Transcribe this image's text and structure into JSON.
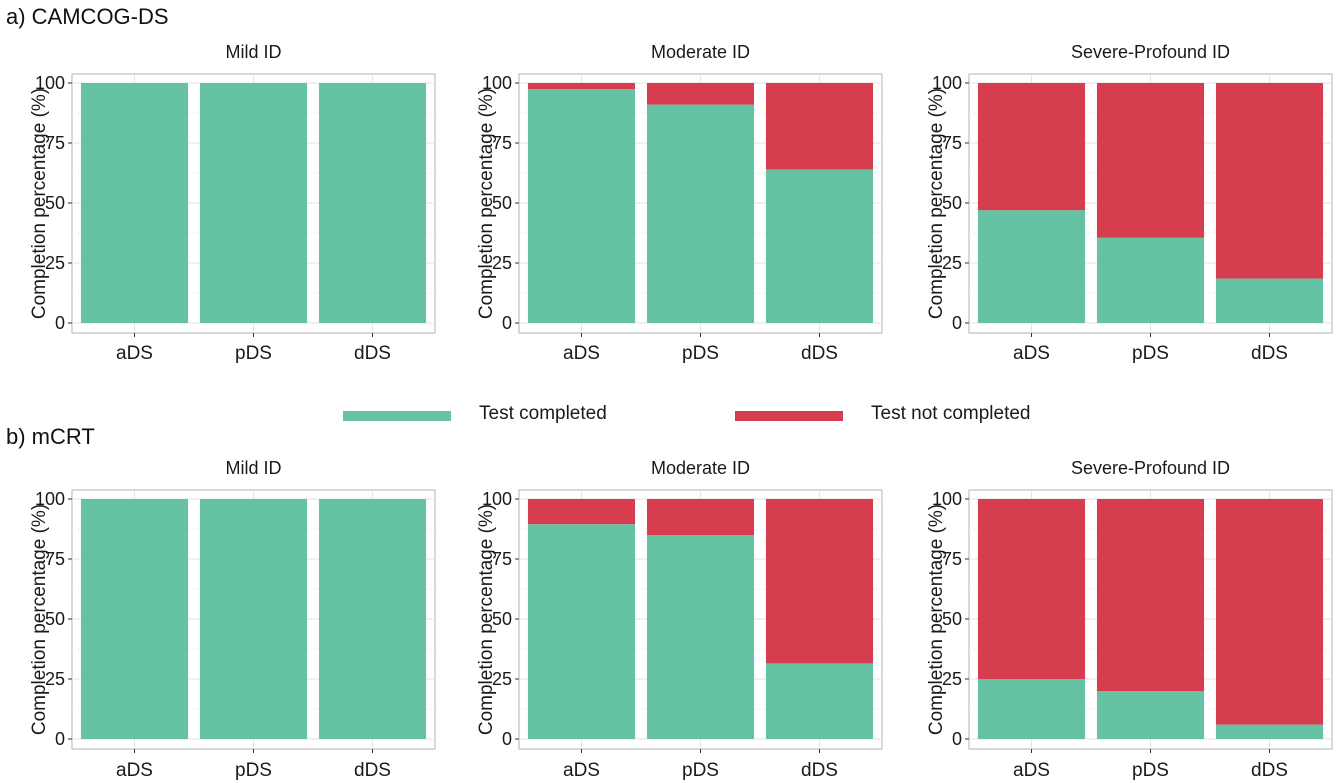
{
  "sections": {
    "a": {
      "label": "a) CAMCOG-DS"
    },
    "b": {
      "label": "b) mCRT"
    }
  },
  "legend": [
    {
      "label": "Test completed",
      "color": "#66c2a5"
    },
    {
      "label": "Test not completed",
      "color": "#d63e4f"
    }
  ],
  "chart_data": [
    {
      "type": "bar",
      "stacked": true,
      "panel_of": "a) CAMCOG-DS",
      "title": "Mild ID",
      "categories": [
        "aDS",
        "pDS",
        "dDS"
      ],
      "series": [
        {
          "name": "Test completed",
          "values": [
            100,
            100,
            100
          ]
        },
        {
          "name": "Test not completed",
          "values": [
            0,
            0,
            0
          ]
        }
      ],
      "ylabel": "Completion percentage (%)",
      "ylim": [
        0,
        100
      ],
      "yticks": [
        0,
        25,
        50,
        75,
        100
      ],
      "grid": true
    },
    {
      "type": "bar",
      "stacked": true,
      "panel_of": "a) CAMCOG-DS",
      "title": "Moderate ID",
      "categories": [
        "aDS",
        "pDS",
        "dDS"
      ],
      "series": [
        {
          "name": "Test completed",
          "values": [
            97.5,
            91,
            64
          ]
        },
        {
          "name": "Test not completed",
          "values": [
            2.5,
            9,
            36
          ]
        }
      ],
      "ylabel": "Completion percentage (%)",
      "ylim": [
        0,
        100
      ],
      "yticks": [
        0,
        25,
        50,
        75,
        100
      ],
      "grid": true
    },
    {
      "type": "bar",
      "stacked": true,
      "panel_of": "a) CAMCOG-DS",
      "title": "Severe-Profound ID",
      "categories": [
        "aDS",
        "pDS",
        "dDS"
      ],
      "series": [
        {
          "name": "Test completed",
          "values": [
            47,
            35.5,
            18.5
          ]
        },
        {
          "name": "Test not completed",
          "values": [
            53,
            64.5,
            81.5
          ]
        }
      ],
      "ylabel": "Completion percentage (%)",
      "ylim": [
        0,
        100
      ],
      "yticks": [
        0,
        25,
        50,
        75,
        100
      ],
      "grid": true
    },
    {
      "type": "bar",
      "stacked": true,
      "panel_of": "b) mCRT",
      "title": "Mild ID",
      "categories": [
        "aDS",
        "pDS",
        "dDS"
      ],
      "series": [
        {
          "name": "Test completed",
          "values": [
            100,
            100,
            100
          ]
        },
        {
          "name": "Test not completed",
          "values": [
            0,
            0,
            0
          ]
        }
      ],
      "ylabel": "Completion percentage (%)",
      "ylim": [
        0,
        100
      ],
      "yticks": [
        0,
        25,
        50,
        75,
        100
      ],
      "grid": true
    },
    {
      "type": "bar",
      "stacked": true,
      "panel_of": "b) mCRT",
      "title": "Moderate ID",
      "categories": [
        "aDS",
        "pDS",
        "dDS"
      ],
      "series": [
        {
          "name": "Test completed",
          "values": [
            89.5,
            85,
            31.5
          ]
        },
        {
          "name": "Test not completed",
          "values": [
            10.5,
            15,
            68.5
          ]
        }
      ],
      "ylabel": "Completion percentage (%)",
      "ylim": [
        0,
        100
      ],
      "yticks": [
        0,
        25,
        50,
        75,
        100
      ],
      "grid": true
    },
    {
      "type": "bar",
      "stacked": true,
      "panel_of": "b) mCRT",
      "title": "Severe-Profound ID",
      "categories": [
        "aDS",
        "pDS",
        "dDS"
      ],
      "series": [
        {
          "name": "Test completed",
          "values": [
            25,
            20,
            6
          ]
        },
        {
          "name": "Test not completed",
          "values": [
            75,
            80,
            94
          ]
        }
      ],
      "ylabel": "Completion percentage (%)",
      "ylim": [
        0,
        100
      ],
      "yticks": [
        0,
        25,
        50,
        75,
        100
      ],
      "grid": true
    }
  ]
}
